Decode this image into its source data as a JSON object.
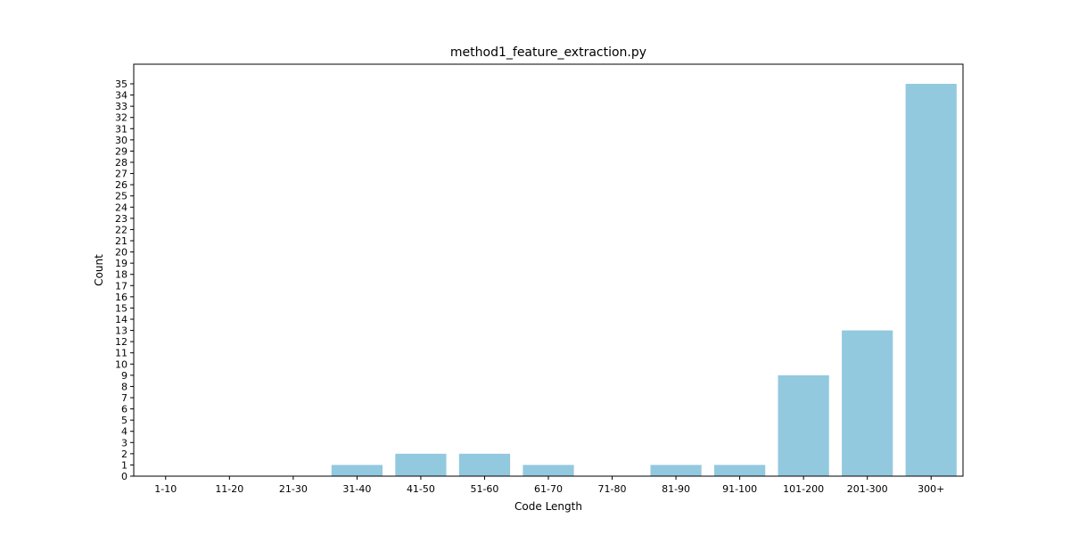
{
  "chart_data": {
    "type": "bar",
    "title": "method1_feature_extraction.py",
    "xlabel": "Code Length",
    "ylabel": "Count",
    "categories": [
      "1-10",
      "11-20",
      "21-30",
      "31-40",
      "41-50",
      "51-60",
      "61-70",
      "71-80",
      "81-90",
      "91-100",
      "101-200",
      "201-300",
      "300+"
    ],
    "values": [
      0,
      0,
      0,
      1,
      2,
      2,
      1,
      0,
      1,
      1,
      9,
      13,
      35
    ],
    "ylim": [
      0,
      36.75
    ],
    "yticks": [
      0,
      1,
      2,
      3,
      4,
      5,
      6,
      7,
      8,
      9,
      10,
      11,
      12,
      13,
      14,
      15,
      16,
      17,
      18,
      19,
      20,
      21,
      22,
      23,
      24,
      25,
      26,
      27,
      28,
      29,
      30,
      31,
      32,
      33,
      34,
      35
    ],
    "bar_color": "#92c9df",
    "grid": false,
    "legend": "none"
  }
}
